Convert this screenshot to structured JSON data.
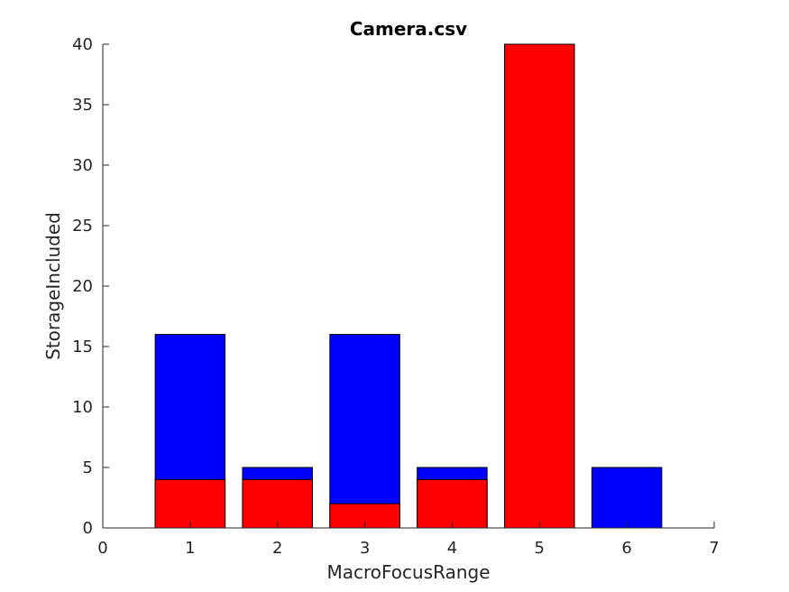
{
  "chart_data": {
    "type": "bar",
    "stacked": false,
    "overlay": true,
    "title": "Camera.csv",
    "xlabel": "MacroFocusRange",
    "ylabel": "StorageIncluded",
    "xlim": [
      0,
      7
    ],
    "ylim": [
      0,
      40
    ],
    "xticks": [
      0,
      1,
      2,
      3,
      4,
      5,
      6,
      7
    ],
    "yticks": [
      0,
      5,
      10,
      15,
      20,
      25,
      30,
      35,
      40
    ],
    "grid": false,
    "legend": "none",
    "x": [
      1,
      2,
      3,
      4,
      5,
      6
    ],
    "series": [
      {
        "color": "#0000ff",
        "values": [
          16,
          5,
          16,
          5,
          0,
          5
        ]
      },
      {
        "color": "#ff0000",
        "values": [
          4,
          4,
          2,
          4,
          40,
          0
        ]
      }
    ]
  }
}
